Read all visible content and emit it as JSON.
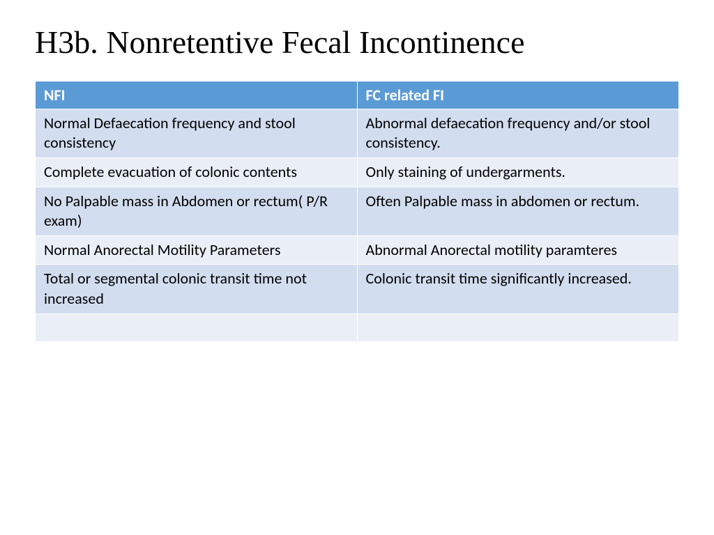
{
  "slide": {
    "title": "H3b. Nonretentive Fecal Incontinence"
  },
  "table": {
    "type": "table",
    "header_bg_color": "#5b9bd5",
    "header_text_color": "#ffffff",
    "row_colors": [
      "#d2deef",
      "#eaeff7"
    ],
    "cell_text_color": "#000000",
    "border_color": "#ffffff",
    "font_size": 22,
    "columns": [
      {
        "label": "NFI",
        "width": "50%"
      },
      {
        "label": "FC related FI",
        "width": "50%"
      }
    ],
    "rows": [
      [
        "Normal Defaecation frequency and stool consistency",
        "Abnormal defaecation frequency and/or stool consistency."
      ],
      [
        "Complete evacuation of colonic contents",
        "Only staining of undergarments."
      ],
      [
        "No Palpable mass in Abdomen or rectum( P/R exam)",
        "Often Palpable mass in abdomen or rectum."
      ],
      [
        "Normal Anorectal Motility Parameters",
        "Abnormal Anorectal motility paramteres"
      ],
      [
        "Total or segmental colonic transit time not increased",
        "Colonic transit time significantly increased."
      ],
      [
        "",
        ""
      ]
    ]
  }
}
